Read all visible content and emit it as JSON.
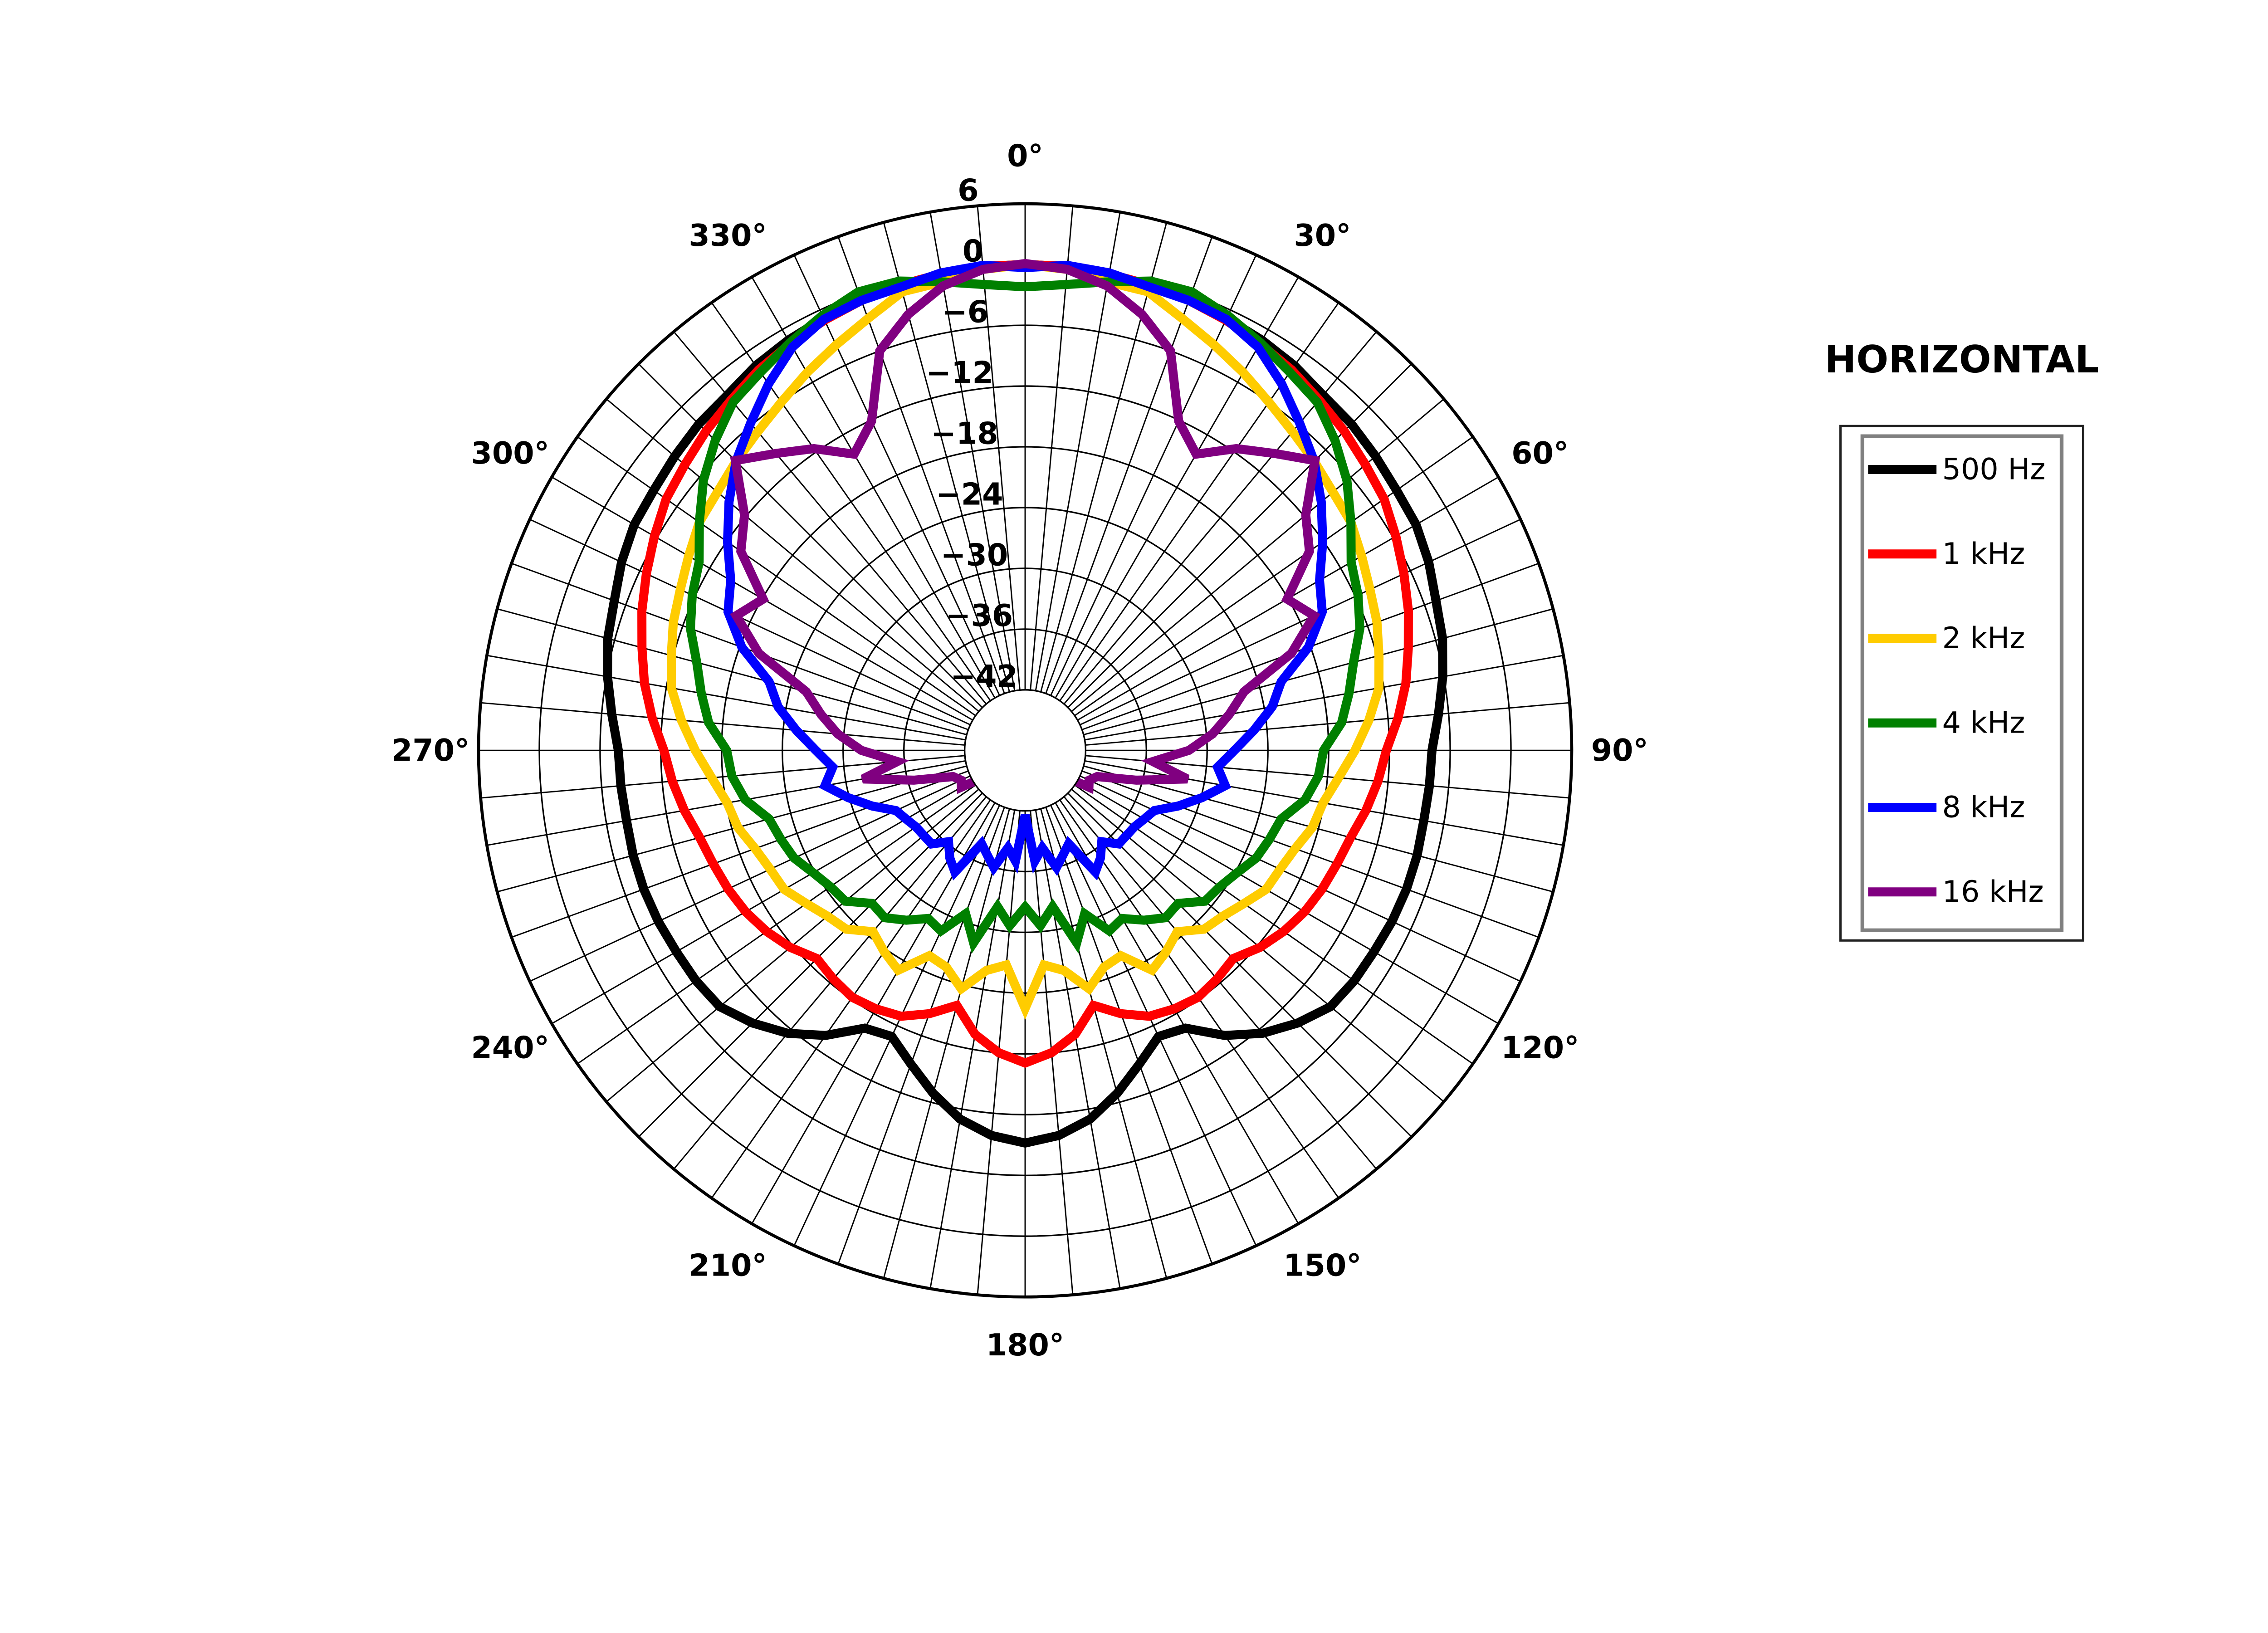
{
  "chart_data": {
    "type": "line",
    "projection": "polar",
    "theta_direction": "clockwise",
    "theta_zero": "top",
    "theta_unit": "degrees",
    "theta": [
      0,
      5,
      10,
      15,
      20,
      25,
      30,
      35,
      40,
      45,
      50,
      55,
      60,
      65,
      70,
      75,
      80,
      85,
      90,
      95,
      100,
      105,
      110,
      115,
      120,
      125,
      130,
      135,
      140,
      145,
      150,
      155,
      160,
      165,
      170,
      175,
      180,
      185,
      190,
      195,
      200,
      205,
      210,
      215,
      220,
      225,
      230,
      235,
      240,
      245,
      250,
      255,
      260,
      265,
      270,
      275,
      280,
      285,
      290,
      295,
      300,
      305,
      310,
      315,
      320,
      325,
      330,
      335,
      340,
      345,
      350,
      355
    ],
    "rlim": [
      -42,
      6
    ],
    "r_ticks": [
      6,
      0,
      -6,
      -12,
      -18,
      -24,
      -30,
      -36,
      -42
    ],
    "r_tick_labels": [
      "6",
      "0",
      "−6",
      "−12",
      "−18",
      "−24",
      "−30",
      "−36",
      "−42"
    ],
    "theta_ticks": [
      0,
      30,
      60,
      90,
      120,
      150,
      180,
      210,
      240,
      270,
      300,
      330
    ],
    "theta_tick_labels": [
      "0°",
      "30°",
      "60°",
      "90°",
      "120°",
      "150°",
      "180°",
      "210°",
      "240°",
      "270°",
      "300°",
      "330°"
    ],
    "theta_grid_step": 5,
    "grid": true,
    "legend_title": "HORIZONTAL",
    "legend_position": "right",
    "series": [
      {
        "name": "500 Hz",
        "color": "#000000",
        "values": [
          0,
          0,
          -0.2,
          -0.4,
          -0.6,
          -0.9,
          -1.2,
          -1.6,
          -2.2,
          -2.4,
          -2.8,
          -3.2,
          -3.4,
          -4,
          -4.8,
          -5.3,
          -6.1,
          -7,
          -7.8,
          -7.9,
          -8,
          -7.9,
          -7.9,
          -8,
          -8.2,
          -8.3,
          -8.6,
          -9.9,
          -11.5,
          -13.6,
          -16.3,
          -16.8,
          -15,
          -12.9,
          -11,
          -9.8,
          -9.2,
          -9.8,
          -11,
          -12.9,
          -15,
          -16.8,
          -16.3,
          -13.6,
          -11.5,
          -9.9,
          -8.6,
          -8.3,
          -8.2,
          -8,
          -7.9,
          -7.9,
          -8,
          -7.9,
          -7.8,
          -7,
          -6.1,
          -5.3,
          -4.8,
          -4,
          -3.4,
          -3.2,
          -2.8,
          -2.4,
          -2.2,
          -1.6,
          -1.2,
          -0.9,
          -0.6,
          -0.4,
          -0.2,
          0
        ]
      },
      {
        "name": "1 kHz",
        "color": "#ff0000",
        "values": [
          0,
          0,
          -0.2,
          -0.4,
          -0.7,
          -1.1,
          -1.6,
          -2.1,
          -2.8,
          -3.4,
          -4.1,
          -4.7,
          -5.7,
          -6.7,
          -7.7,
          -8.8,
          -9.8,
          -11,
          -12.3,
          -13,
          -13.8,
          -14.7,
          -15.2,
          -15.6,
          -16.1,
          -16.8,
          -17.7,
          -18.9,
          -18.5,
          -18.2,
          -18.5,
          -19,
          -20.3,
          -21.9,
          -19.5,
          -18,
          -17.1,
          -18,
          -19.5,
          -21.9,
          -20.3,
          -19,
          -18.5,
          -18.2,
          -18.5,
          -18.9,
          -17.7,
          -16.8,
          -16.1,
          -15.6,
          -15.2,
          -14.7,
          -13.8,
          -13,
          -12.3,
          -11,
          -9.8,
          -8.8,
          -7.7,
          -6.7,
          -5.7,
          -4.7,
          -4.1,
          -3.4,
          -2.8,
          -2.1,
          -1.6,
          -1.1,
          -0.7,
          -0.4,
          -0.2,
          0
        ]
      },
      {
        "name": "2 kHz",
        "color": "#ffcc00",
        "values": [
          0,
          -0.3,
          -1,
          -1.1,
          -2.6,
          -3.8,
          -4.9,
          -6,
          -6.9,
          -7.6,
          -8.3,
          -8.7,
          -9.6,
          -10.4,
          -11,
          -11.8,
          -12.5,
          -13.9,
          -15.4,
          -16.9,
          -18.1,
          -18.6,
          -19.6,
          -20.2,
          -20.5,
          -21.6,
          -22.5,
          -23,
          -24.6,
          -23.7,
          -22.9,
          -25.6,
          -25.2,
          -23.6,
          -25.9,
          -26.7,
          -22.5,
          -26.7,
          -25.9,
          -23.6,
          -25.2,
          -25.6,
          -22.9,
          -23.7,
          -24.6,
          -23,
          -22.5,
          -21.6,
          -20.5,
          -20.2,
          -19.6,
          -18.6,
          -18.1,
          -16.9,
          -15.4,
          -13.9,
          -12.5,
          -11.8,
          -11,
          -10.4,
          -9.6,
          -8.7,
          -8.3,
          -7.6,
          -6.9,
          -6,
          -4.9,
          -3.8,
          -2.6,
          -1.1,
          -1,
          -0.3
        ]
      },
      {
        "name": "4 kHz",
        "color": "#008000",
        "values": [
          -2.2,
          -1.8,
          -1,
          0,
          0.2,
          -0.6,
          -1.5,
          -2.4,
          -3.1,
          -4.7,
          -6.5,
          -8.7,
          -10.8,
          -11.7,
          -12.8,
          -14.4,
          -15.5,
          -16.6,
          -18.5,
          -18.9,
          -19.9,
          -21.8,
          -22.3,
          -22.8,
          -23.8,
          -24.5,
          -24.8,
          -26.6,
          -26.4,
          -27.5,
          -28.8,
          -28.3,
          -30.8,
          -28.3,
          -32.3,
          -30.6,
          -32.5,
          -30.6,
          -32.3,
          -28.3,
          -30.8,
          -28.3,
          -28.8,
          -27.5,
          -26.4,
          -26.6,
          -24.8,
          -24.5,
          -23.8,
          -22.8,
          -22.3,
          -21.8,
          -19.9,
          -18.9,
          -18.5,
          -16.6,
          -15.5,
          -14.4,
          -12.8,
          -11.7,
          -10.8,
          -8.7,
          -6.5,
          -4.7,
          -3.1,
          -2.4,
          -1.5,
          -0.6,
          0.2,
          0,
          -1,
          -1.8
        ]
      },
      {
        "name": "8 kHz",
        "color": "#0000ff",
        "values": [
          -0.3,
          0.1,
          -0.1,
          -0.6,
          -0.7,
          -1,
          -2,
          -3.8,
          -5.8,
          -7.6,
          -9.8,
          -12.1,
          -14.4,
          -15.6,
          -18.2,
          -21.8,
          -23.2,
          -25.3,
          -27.3,
          -28.9,
          -27.9,
          -29.9,
          -31.9,
          -33.9,
          -34.4,
          -34.8,
          -34.9,
          -34.9,
          -36.2,
          -35,
          -34.1,
          -37.8,
          -37,
          -36,
          -38.2,
          -37,
          -41.6,
          -37,
          -38.2,
          -36,
          -37,
          -37.8,
          -34.1,
          -35,
          -36.2,
          -34.9,
          -34.9,
          -34.8,
          -34.4,
          -33.9,
          -31.9,
          -29.9,
          -27.9,
          -28.9,
          -27.3,
          -25.3,
          -23.2,
          -21.8,
          -18.2,
          -15.6,
          -14.4,
          -12.1,
          -9.8,
          -7.6,
          -5.8,
          -3.8,
          -2,
          -1,
          -0.7,
          -0.6,
          -0.1,
          0.1
        ]
      },
      {
        "name": "16 kHz",
        "color": "#800080",
        "values": [
          0.1,
          -0.3,
          -1.4,
          -3.4,
          -6,
          -12.1,
          -14.2,
          -11.6,
          -9.7,
          -7.5,
          -11.8,
          -13.7,
          -18.1,
          -16.5,
          -20,
          -25.6,
          -27.5,
          -29.4,
          -31.8,
          -35.3,
          -31.7,
          -36.6,
          -40.4,
          -41,
          -40.7,
          -44,
          -46,
          -46,
          -46,
          -46,
          -46,
          -46,
          -46,
          -46,
          -46,
          -46,
          -46,
          -46,
          -46,
          -46,
          -46,
          -46,
          -46,
          -46,
          -46,
          -46,
          -46,
          -44,
          -40.7,
          -41,
          -40.4,
          -36.6,
          -31.7,
          -35.3,
          -31.8,
          -29.4,
          -27.5,
          -25.6,
          -20,
          -16.5,
          -18.1,
          -13.7,
          -11.8,
          -7.5,
          -9.7,
          -11.6,
          -14.2,
          -12.1,
          -6,
          -3.4,
          -1.4,
          -0.3
        ]
      }
    ]
  }
}
